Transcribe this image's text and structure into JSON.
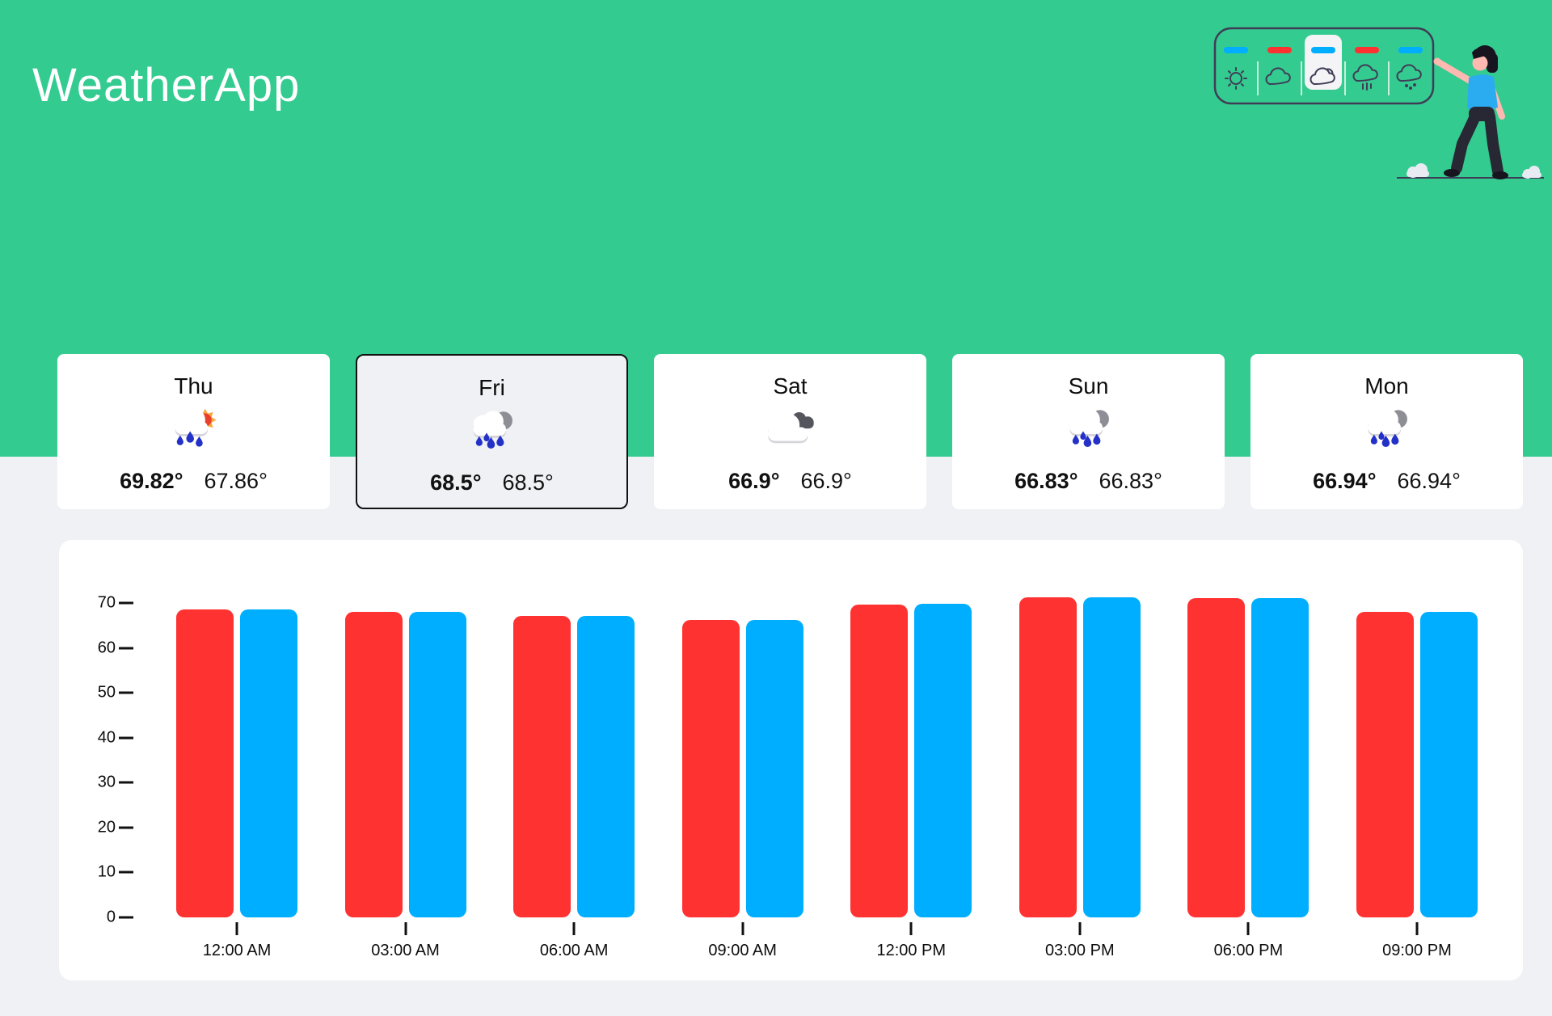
{
  "app": {
    "title": "WeatherApp"
  },
  "colors": {
    "header_green": "#34CB90",
    "page_bg": "#EFF1F5",
    "card_bg": "#FFFFFF",
    "selected_card_bg": "#F0F1F4",
    "selected_card_border": "#111111",
    "bar_red": "#FF3232",
    "bar_blue": "#00AEFF"
  },
  "days": [
    {
      "label": "Thu",
      "icon": "rain-sun",
      "temp_max": "69.82°",
      "temp_min": "67.86°",
      "selected": false
    },
    {
      "label": "Fri",
      "icon": "rain-moon",
      "temp_max": "68.5°",
      "temp_min": "68.5°",
      "selected": true
    },
    {
      "label": "Sat",
      "icon": "clouds",
      "temp_max": "66.9°",
      "temp_min": "66.9°",
      "selected": false
    },
    {
      "label": "Sun",
      "icon": "rain-moon",
      "temp_max": "66.83°",
      "temp_min": "66.83°",
      "selected": false
    },
    {
      "label": "Mon",
      "icon": "rain-moon",
      "temp_max": "66.94°",
      "temp_min": "66.94°",
      "selected": false
    }
  ],
  "illustration": {
    "panel_icons": [
      "sun",
      "cloud",
      "cloud-sun",
      "rain-cloud",
      "snow-cloud"
    ],
    "panel_bar_colors": [
      "#00AEFF",
      "#FF3232",
      "#00AEFF",
      "#FF3232",
      "#00AEFF"
    ],
    "selected_panel_icon": "cloud-sun"
  },
  "chart_data": {
    "type": "bar",
    "categories": [
      "12:00 AM",
      "03:00 AM",
      "06:00 AM",
      "09:00 AM",
      "12:00 PM",
      "03:00 PM",
      "06:00 PM",
      "09:00 PM"
    ],
    "series": [
      {
        "name": "red",
        "color": "#FF3232",
        "values": [
          68.5,
          68.0,
          67.1,
          66.2,
          69.6,
          71.2,
          71.0,
          68.0
        ]
      },
      {
        "name": "blue",
        "color": "#00AEFF",
        "values": [
          68.6,
          68.1,
          67.2,
          66.3,
          69.8,
          71.3,
          71.1,
          68.1
        ]
      }
    ],
    "yticks": [
      0,
      10,
      20,
      30,
      40,
      50,
      60,
      70
    ],
    "ylim": [
      0,
      70
    ],
    "grid": false,
    "legend": false,
    "title": "",
    "xlabel": "",
    "ylabel": ""
  }
}
